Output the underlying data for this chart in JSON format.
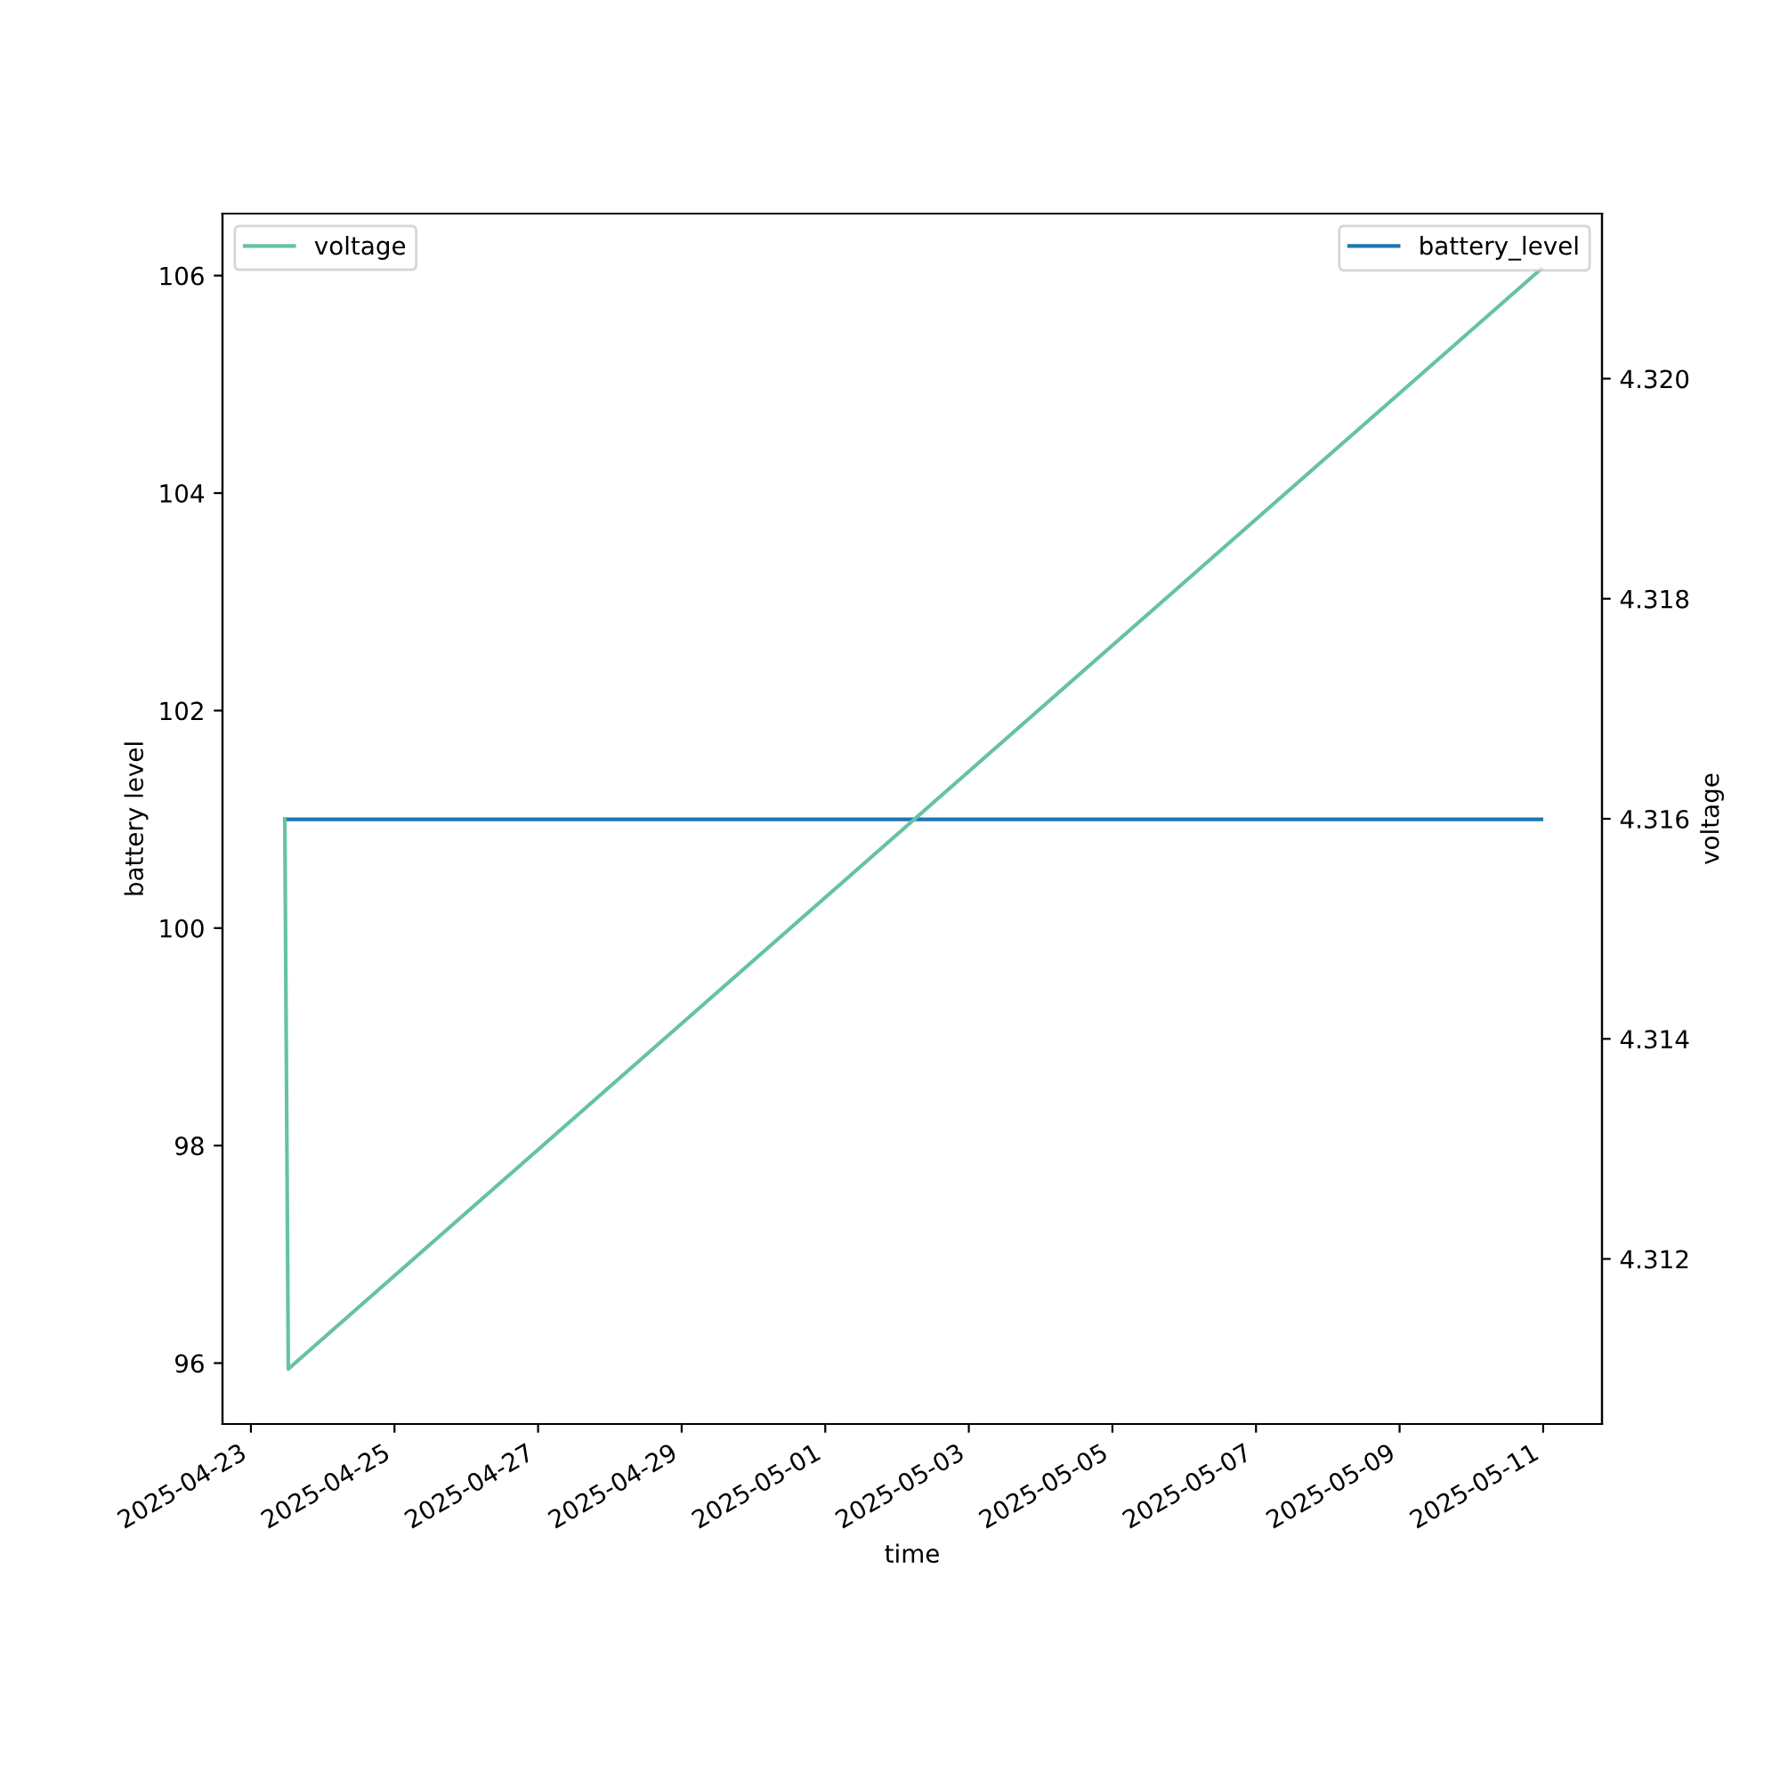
{
  "chart_data": {
    "type": "line",
    "xlabel": "time",
    "ylabel": "battery level",
    "y2label": "voltage",
    "series": [
      {
        "name": "battery_level",
        "color": "#1f77b4",
        "x": [
          "2025-04-23T11:20",
          "2025-05-10T23:25"
        ],
        "values": [
          101,
          101
        ]
      },
      {
        "name": "voltage",
        "color": "#66c2a5",
        "axis": "y2",
        "x": [
          "2025-04-23T11:20",
          "2025-04-23T12:30",
          "2025-05-10T23:25"
        ],
        "values": [
          4.316,
          4.311,
          4.321
        ]
      }
    ],
    "xlim": [
      "2025-04-22T14:30",
      "2025-05-11T19:40"
    ],
    "xticks": [
      "2025-04-23",
      "2025-04-25",
      "2025-04-27",
      "2025-04-29",
      "2025-05-01",
      "2025-05-03",
      "2025-05-05",
      "2025-05-07",
      "2025-05-09",
      "2025-05-11"
    ],
    "ylim": [
      95.44,
      106.57
    ],
    "yticks": [
      96,
      98,
      100,
      102,
      104,
      106
    ],
    "y2lim": [
      4.3105,
      4.3215
    ],
    "y2ticks": [
      4.312,
      4.314,
      4.316,
      4.318,
      {
        "value": 4.32,
        "label": "4.320"
      }
    ],
    "legend": "top",
    "grid": false,
    "marker": "none",
    "line_style": "solid"
  }
}
